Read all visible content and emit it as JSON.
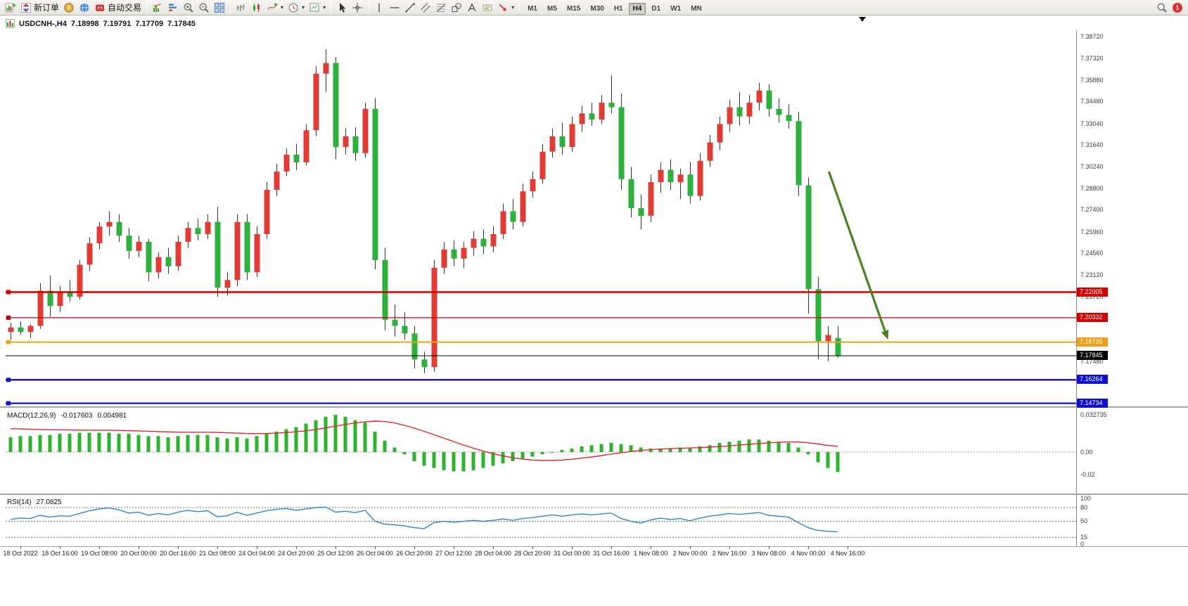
{
  "toolbar": {
    "new_order": "新订单",
    "auto_trading": "自动交易",
    "timeframes": [
      "M1",
      "M5",
      "M15",
      "M30",
      "H1",
      "H4",
      "D1",
      "W1",
      "MN"
    ],
    "active_timeframe": "H4",
    "notification_badge": "1"
  },
  "chart": {
    "symbol_period": "USDCNH-,H4",
    "open": "7.18998",
    "high": "7.19791",
    "low": "7.17709",
    "close": "7.17845"
  },
  "chart_data": {
    "type": "candlestick",
    "symbol": "USDCNH-",
    "period": "H4",
    "colors": {
      "up": "#e13b34",
      "down": "#2cb23c",
      "wick": "#333333"
    },
    "price_axis": {
      "max": 7.3905,
      "min": 7.14578,
      "labels": [
        "7.38720",
        "7.37320",
        "7.35880",
        "7.34480",
        "7.33040",
        "7.31640",
        "7.30240",
        "7.28800",
        "7.27400",
        "7.25960",
        "7.24560",
        "7.23120",
        "7.21720",
        "7.17480"
      ]
    },
    "hlines": [
      {
        "price": 7.22005,
        "label": "7.22005",
        "color": "#d40000",
        "width": 2.5
      },
      {
        "price": 7.20332,
        "label": "7.20332",
        "color": "#d40000",
        "width": 1.3
      },
      {
        "price": 7.18735,
        "label": "7.18735",
        "color": "#f0a017",
        "width": 2
      },
      {
        "price": 7.16264,
        "label": "7.16264",
        "color": "#0f0fd0",
        "width": 2.3
      },
      {
        "price": 7.14734,
        "label": "7.14734",
        "color": "#0f0fd0",
        "width": 2.3
      }
    ],
    "bid_line": {
      "price": 7.17845,
      "label": "7.17845",
      "color": "#000000"
    },
    "arrow": {
      "from_index": 83.1,
      "from_price": 7.299,
      "to_index": 89.1,
      "to_price": 7.189,
      "color": "#4c8122"
    },
    "shift_marker_index": 86.5,
    "candles": [
      [
        7.194,
        7.2,
        7.189,
        7.197
      ],
      [
        7.197,
        7.201,
        7.192,
        7.194
      ],
      [
        7.194,
        7.199,
        7.19,
        7.198
      ],
      [
        7.198,
        7.226,
        7.196,
        7.221
      ],
      [
        7.221,
        7.231,
        7.204,
        7.211
      ],
      [
        7.211,
        7.224,
        7.207,
        7.22
      ],
      [
        7.22,
        7.228,
        7.214,
        7.217
      ],
      [
        7.217,
        7.241,
        7.215,
        7.238
      ],
      [
        7.238,
        7.256,
        7.234,
        7.252
      ],
      [
        7.252,
        7.266,
        7.248,
        7.263
      ],
      [
        7.263,
        7.273,
        7.257,
        7.266
      ],
      [
        7.266,
        7.271,
        7.253,
        7.257
      ],
      [
        7.257,
        7.262,
        7.242,
        7.247
      ],
      [
        7.247,
        7.257,
        7.243,
        7.253
      ],
      [
        7.253,
        7.255,
        7.227,
        7.233
      ],
      [
        7.233,
        7.246,
        7.229,
        7.243
      ],
      [
        7.243,
        7.249,
        7.232,
        7.237
      ],
      [
        7.237,
        7.257,
        7.234,
        7.253
      ],
      [
        7.253,
        7.266,
        7.249,
        7.262
      ],
      [
        7.262,
        7.268,
        7.254,
        7.258
      ],
      [
        7.258,
        7.271,
        7.255,
        7.266
      ],
      [
        7.266,
        7.276,
        7.217,
        7.223
      ],
      [
        7.223,
        7.233,
        7.218,
        7.228
      ],
      [
        7.228,
        7.271,
        7.224,
        7.266
      ],
      [
        7.266,
        7.271,
        7.228,
        7.233
      ],
      [
        7.233,
        7.263,
        7.23,
        7.258
      ],
      [
        7.258,
        7.292,
        7.255,
        7.287
      ],
      [
        7.287,
        7.304,
        7.283,
        7.299
      ],
      [
        7.299,
        7.314,
        7.296,
        7.31
      ],
      [
        7.31,
        7.317,
        7.3,
        7.305
      ],
      [
        7.305,
        7.33,
        7.303,
        7.326
      ],
      [
        7.326,
        7.368,
        7.322,
        7.363
      ],
      [
        7.363,
        7.379,
        7.351,
        7.37
      ],
      [
        7.37,
        7.374,
        7.307,
        7.315
      ],
      [
        7.315,
        7.327,
        7.31,
        7.322
      ],
      [
        7.322,
        7.328,
        7.306,
        7.311
      ],
      [
        7.311,
        7.344,
        7.308,
        7.34
      ],
      [
        7.34,
        7.347,
        7.235,
        7.241
      ],
      [
        7.241,
        7.249,
        7.195,
        7.202
      ],
      [
        7.202,
        7.212,
        7.191,
        7.198
      ],
      [
        7.198,
        7.207,
        7.189,
        7.193
      ],
      [
        7.193,
        7.198,
        7.17,
        7.176
      ],
      [
        7.176,
        7.181,
        7.167,
        7.171
      ],
      [
        7.171,
        7.241,
        7.168,
        7.236
      ],
      [
        7.236,
        7.253,
        7.232,
        7.248
      ],
      [
        7.248,
        7.254,
        7.237,
        7.242
      ],
      [
        7.242,
        7.253,
        7.236,
        7.249
      ],
      [
        7.249,
        7.26,
        7.244,
        7.255
      ],
      [
        7.255,
        7.261,
        7.245,
        7.25
      ],
      [
        7.25,
        7.263,
        7.246,
        7.258
      ],
      [
        7.258,
        7.278,
        7.255,
        7.273
      ],
      [
        7.273,
        7.281,
        7.261,
        7.266
      ],
      [
        7.266,
        7.291,
        7.263,
        7.286
      ],
      [
        7.286,
        7.299,
        7.282,
        7.294
      ],
      [
        7.294,
        7.317,
        7.291,
        7.312
      ],
      [
        7.312,
        7.327,
        7.308,
        7.322
      ],
      [
        7.322,
        7.331,
        7.31,
        7.315
      ],
      [
        7.315,
        7.335,
        7.312,
        7.33
      ],
      [
        7.33,
        7.342,
        7.325,
        7.337
      ],
      [
        7.337,
        7.344,
        7.329,
        7.333
      ],
      [
        7.333,
        7.349,
        7.33,
        7.344
      ],
      [
        7.344,
        7.362,
        7.337,
        7.341
      ],
      [
        7.341,
        7.35,
        7.287,
        7.294
      ],
      [
        7.294,
        7.302,
        7.269,
        7.275
      ],
      [
        7.275,
        7.284,
        7.261,
        7.27
      ],
      [
        7.27,
        7.297,
        7.266,
        7.292
      ],
      [
        7.292,
        7.305,
        7.285,
        7.3
      ],
      [
        7.3,
        7.307,
        7.287,
        7.292
      ],
      [
        7.292,
        7.301,
        7.281,
        7.297
      ],
      [
        7.297,
        7.305,
        7.278,
        7.283
      ],
      [
        7.283,
        7.311,
        7.28,
        7.306
      ],
      [
        7.306,
        7.323,
        7.302,
        7.318
      ],
      [
        7.318,
        7.335,
        7.313,
        7.33
      ],
      [
        7.33,
        7.346,
        7.325,
        7.341
      ],
      [
        7.341,
        7.351,
        7.329,
        7.335
      ],
      [
        7.335,
        7.349,
        7.33,
        7.344
      ],
      [
        7.344,
        7.357,
        7.339,
        7.352
      ],
      [
        7.352,
        7.356,
        7.335,
        7.34
      ],
      [
        7.34,
        7.347,
        7.331,
        7.336
      ],
      [
        7.336,
        7.343,
        7.327,
        7.332
      ],
      [
        7.332,
        7.338,
        7.283,
        7.29
      ],
      [
        7.29,
        7.295,
        7.206,
        7.222
      ],
      [
        7.222,
        7.23,
        7.176,
        7.188
      ],
      [
        7.188,
        7.198,
        7.175,
        7.192
      ],
      [
        7.18998,
        7.19791,
        7.17709,
        7.17845
      ]
    ],
    "macd": {
      "title": "MACD(12,26,9)",
      "value": "-0.017603",
      "signal_value": "0.004981",
      "bar_color": "#2db32d",
      "signal_color": "#e02828",
      "axis": {
        "max": 0.03706,
        "min": -0.03521
      },
      "scale_labels": [
        {
          "text": "0.032735",
          "value": 0.032735
        },
        {
          "text": "0.00",
          "value": 0
        },
        {
          "text": "-0.02",
          "value": -0.02
        }
      ],
      "histogram": [
        0.013,
        0.014,
        0.014,
        0.015,
        0.015,
        0.016,
        0.016,
        0.017,
        0.017,
        0.017,
        0.017,
        0.016,
        0.016,
        0.015,
        0.014,
        0.014,
        0.013,
        0.014,
        0.015,
        0.015,
        0.015,
        0.013,
        0.012,
        0.013,
        0.012,
        0.014,
        0.016,
        0.018,
        0.02,
        0.022,
        0.025,
        0.028,
        0.031,
        0.0327,
        0.031,
        0.028,
        0.026,
        0.018,
        0.01,
        0.004,
        -0.002,
        -0.008,
        -0.012,
        -0.014,
        -0.016,
        -0.017,
        -0.017,
        -0.016,
        -0.014,
        -0.012,
        -0.01,
        -0.008,
        -0.006,
        -0.004,
        -0.002,
        0.0,
        0.002,
        0.003,
        0.005,
        0.006,
        0.007,
        0.008,
        0.007,
        0.006,
        0.004,
        0.003,
        0.003,
        0.003,
        0.004,
        0.004,
        0.005,
        0.006,
        0.008,
        0.009,
        0.01,
        0.011,
        0.011,
        0.01,
        0.009,
        0.008,
        0.004,
        -0.002,
        -0.009,
        -0.014,
        -0.017603
      ],
      "signal_line": [
        0.0205,
        0.0203,
        0.02,
        0.0198,
        0.0196,
        0.0195,
        0.0194,
        0.0193,
        0.0192,
        0.0192,
        0.0191,
        0.019,
        0.0188,
        0.0186,
        0.0183,
        0.018,
        0.0177,
        0.0175,
        0.0174,
        0.0174,
        0.0174,
        0.0172,
        0.0169,
        0.0166,
        0.0163,
        0.0162,
        0.0163,
        0.0166,
        0.0171,
        0.0178,
        0.0187,
        0.0198,
        0.0212,
        0.0227,
        0.0242,
        0.0255,
        0.0266,
        0.0272,
        0.0268,
        0.0255,
        0.0235,
        0.021,
        0.0182,
        0.0152,
        0.0122,
        0.0092,
        0.0062,
        0.0034,
        0.0008,
        -0.0014,
        -0.0034,
        -0.005,
        -0.0062,
        -0.007,
        -0.0074,
        -0.0074,
        -0.007,
        -0.0063,
        -0.0054,
        -0.0043,
        -0.0031,
        -0.0018,
        -0.0006,
        0.0005,
        0.0014,
        0.0021,
        0.0026,
        0.003,
        0.0033,
        0.0036,
        0.0039,
        0.0043,
        0.0048,
        0.0054,
        0.0061,
        0.0068,
        0.0075,
        0.0081,
        0.0086,
        0.0089,
        0.0088,
        0.0082,
        0.0071,
        0.0058,
        0.004981
      ]
    },
    "rsi": {
      "title": "RSI(14)",
      "value": "27.0825",
      "line_color": "#2f86d4",
      "axis": {
        "max": 104.6,
        "min": -3.1
      },
      "levels": [
        80,
        50,
        15
      ],
      "scale_labels": [
        {
          "text": "100",
          "value": 100
        },
        {
          "text": "80",
          "value": 80
        },
        {
          "text": "50",
          "value": 50
        },
        {
          "text": "15",
          "value": 15
        },
        {
          "text": "0",
          "value": 0
        }
      ],
      "values": [
        54,
        57,
        56,
        63,
        59,
        62,
        61,
        67,
        73,
        77,
        79,
        75,
        68,
        70,
        63,
        67,
        64,
        70,
        74,
        71,
        73,
        60,
        62,
        70,
        63,
        68,
        73,
        76,
        78,
        74,
        77,
        80,
        81,
        70,
        72,
        69,
        74,
        50,
        44,
        42,
        40,
        36,
        34,
        47,
        50,
        48,
        50,
        52,
        50,
        52,
        55,
        52,
        56,
        58,
        61,
        64,
        61,
        64,
        66,
        64,
        66,
        68,
        56,
        50,
        46,
        53,
        57,
        54,
        56,
        51,
        57,
        61,
        64,
        67,
        65,
        67,
        69,
        63,
        61,
        59,
        47,
        36,
        30,
        28,
        27.08
      ]
    },
    "time_axis": {
      "first_index": 1,
      "every": 4
    },
    "time_labels": [
      "18 Oct 2022",
      "18 Oct 16:00",
      "19 Oct 08:00",
      "20 Oct 00:00",
      "20 Oct 16:00",
      "21 Oct 08:00",
      "24 Oct 04:00",
      "24 Oct 20:00",
      "25 Oct 12:00",
      "26 Oct 04:00",
      "26 Oct 20:00",
      "27 Oct 12:00",
      "28 Oct 04:00",
      "28 Oct 20:00",
      "31 Oct 00:00",
      "31 Oct 16:00",
      "1 Nov 08:00",
      "2 Nov 00:00",
      "2 Nov 16:00",
      "3 Nov 08:00",
      "4 Nov 00:00",
      "4 Nov 16:00"
    ]
  }
}
